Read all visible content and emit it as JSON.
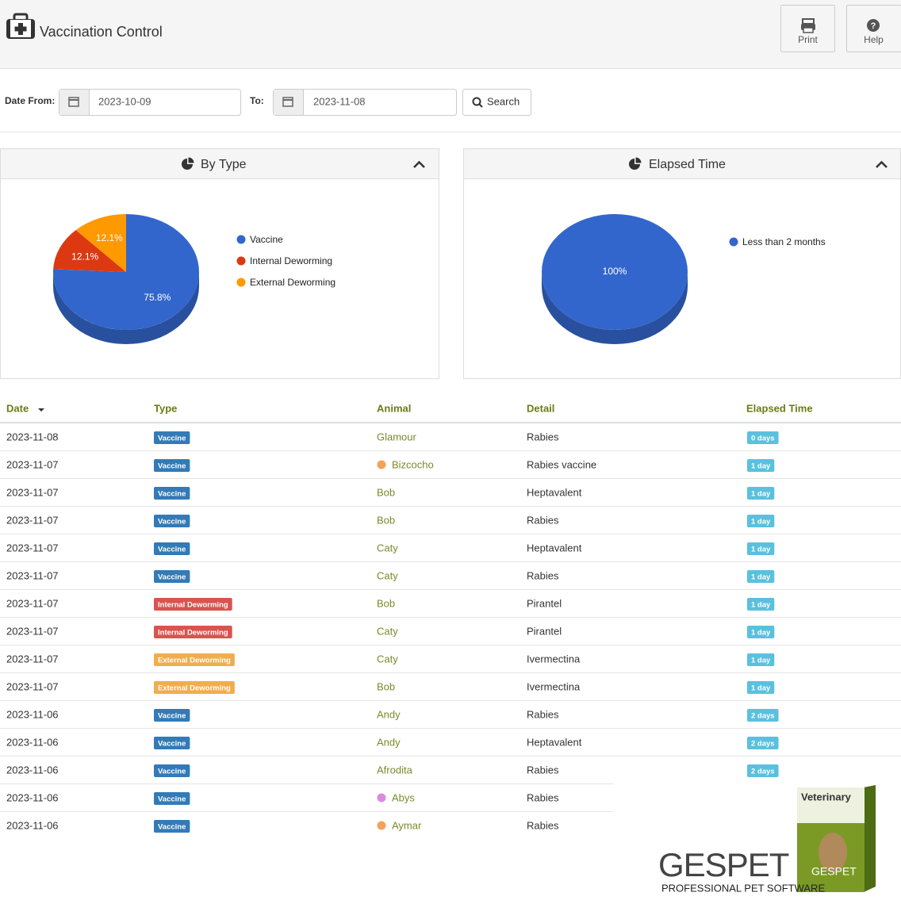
{
  "header": {
    "title": "Vaccination Control",
    "buttons": [
      "Print",
      "Help"
    ]
  },
  "filters": {
    "from_label": "Date From:",
    "from": "2023-10-09",
    "to_label": "To:",
    "to": "2023-11-08",
    "search": "Search"
  },
  "chart_data": [
    {
      "type": "pie",
      "title": "By Type",
      "categories": [
        "Vaccine",
        "Internal Deworming",
        "External Deworming"
      ],
      "values": [
        75.8,
        12.1,
        12.1
      ],
      "value_labels": [
        "75.8%",
        "12.1%",
        "12.1%"
      ],
      "colors": [
        "#3366cc",
        "#dc3912",
        "#ff9900"
      ]
    },
    {
      "type": "pie",
      "title": "Elapsed Time",
      "categories": [
        "Less than 2 months"
      ],
      "values": [
        100
      ],
      "value_labels": [
        "100%"
      ],
      "colors": [
        "#3366cc"
      ]
    }
  ],
  "table": {
    "columns": [
      "Date",
      "Type",
      "Animal",
      "Detail",
      "Elapsed Time"
    ],
    "type_colors": {
      "Vaccine": "#337ab7",
      "Internal Deworming": "#d9534f",
      "External Deworming": "#f0ad4e"
    },
    "elapsed_color": "#5bc0de",
    "rows": [
      {
        "date": "2023-11-08",
        "type": "Vaccine",
        "animal": "Glamour",
        "detail": "Rabies",
        "elapsed": "0 days"
      },
      {
        "date": "2023-11-07",
        "type": "Vaccine",
        "animal": "Bizcocho",
        "dot": "#f4a259",
        "detail": "Rabies vaccine",
        "elapsed": "1 day"
      },
      {
        "date": "2023-11-07",
        "type": "Vaccine",
        "animal": "Bob",
        "detail": "Heptavalent",
        "elapsed": "1 day"
      },
      {
        "date": "2023-11-07",
        "type": "Vaccine",
        "animal": "Bob",
        "detail": "Rabies",
        "elapsed": "1 day"
      },
      {
        "date": "2023-11-07",
        "type": "Vaccine",
        "animal": "Caty",
        "detail": "Heptavalent",
        "elapsed": "1 day"
      },
      {
        "date": "2023-11-07",
        "type": "Vaccine",
        "animal": "Caty",
        "detail": "Rabies",
        "elapsed": "1 day"
      },
      {
        "date": "2023-11-07",
        "type": "Internal Deworming",
        "animal": "Bob",
        "detail": "Pirantel",
        "elapsed": "1 day"
      },
      {
        "date": "2023-11-07",
        "type": "Internal Deworming",
        "animal": "Caty",
        "detail": "Pirantel",
        "elapsed": "1 day"
      },
      {
        "date": "2023-11-07",
        "type": "External Deworming",
        "animal": "Caty",
        "detail": "Ivermectina",
        "elapsed": "1 day"
      },
      {
        "date": "2023-11-07",
        "type": "External Deworming",
        "animal": "Bob",
        "detail": "Ivermectina",
        "elapsed": "1 day"
      },
      {
        "date": "2023-11-06",
        "type": "Vaccine",
        "animal": "Andy",
        "detail": "Rabies",
        "elapsed": "2 days"
      },
      {
        "date": "2023-11-06",
        "type": "Vaccine",
        "animal": "Andy",
        "detail": "Heptavalent",
        "elapsed": "2 days"
      },
      {
        "date": "2023-11-06",
        "type": "Vaccine",
        "animal": "Afrodita",
        "detail": "Rabies",
        "elapsed": "2 days"
      },
      {
        "date": "2023-11-06",
        "type": "Vaccine",
        "animal": "Abys",
        "dot": "#d98be0",
        "detail": "Rabies",
        "elapsed": null
      },
      {
        "date": "2023-11-06",
        "type": "Vaccine",
        "animal": "Aymar",
        "dot": "#f4a259",
        "detail": "Rabies",
        "elapsed": null
      }
    ]
  },
  "logo": {
    "brand": "GESPET",
    "tagline": "PROFESSIONAL PET SOFTWARE",
    "box_title": "Veterinary",
    "box_brand": "GESPET"
  }
}
